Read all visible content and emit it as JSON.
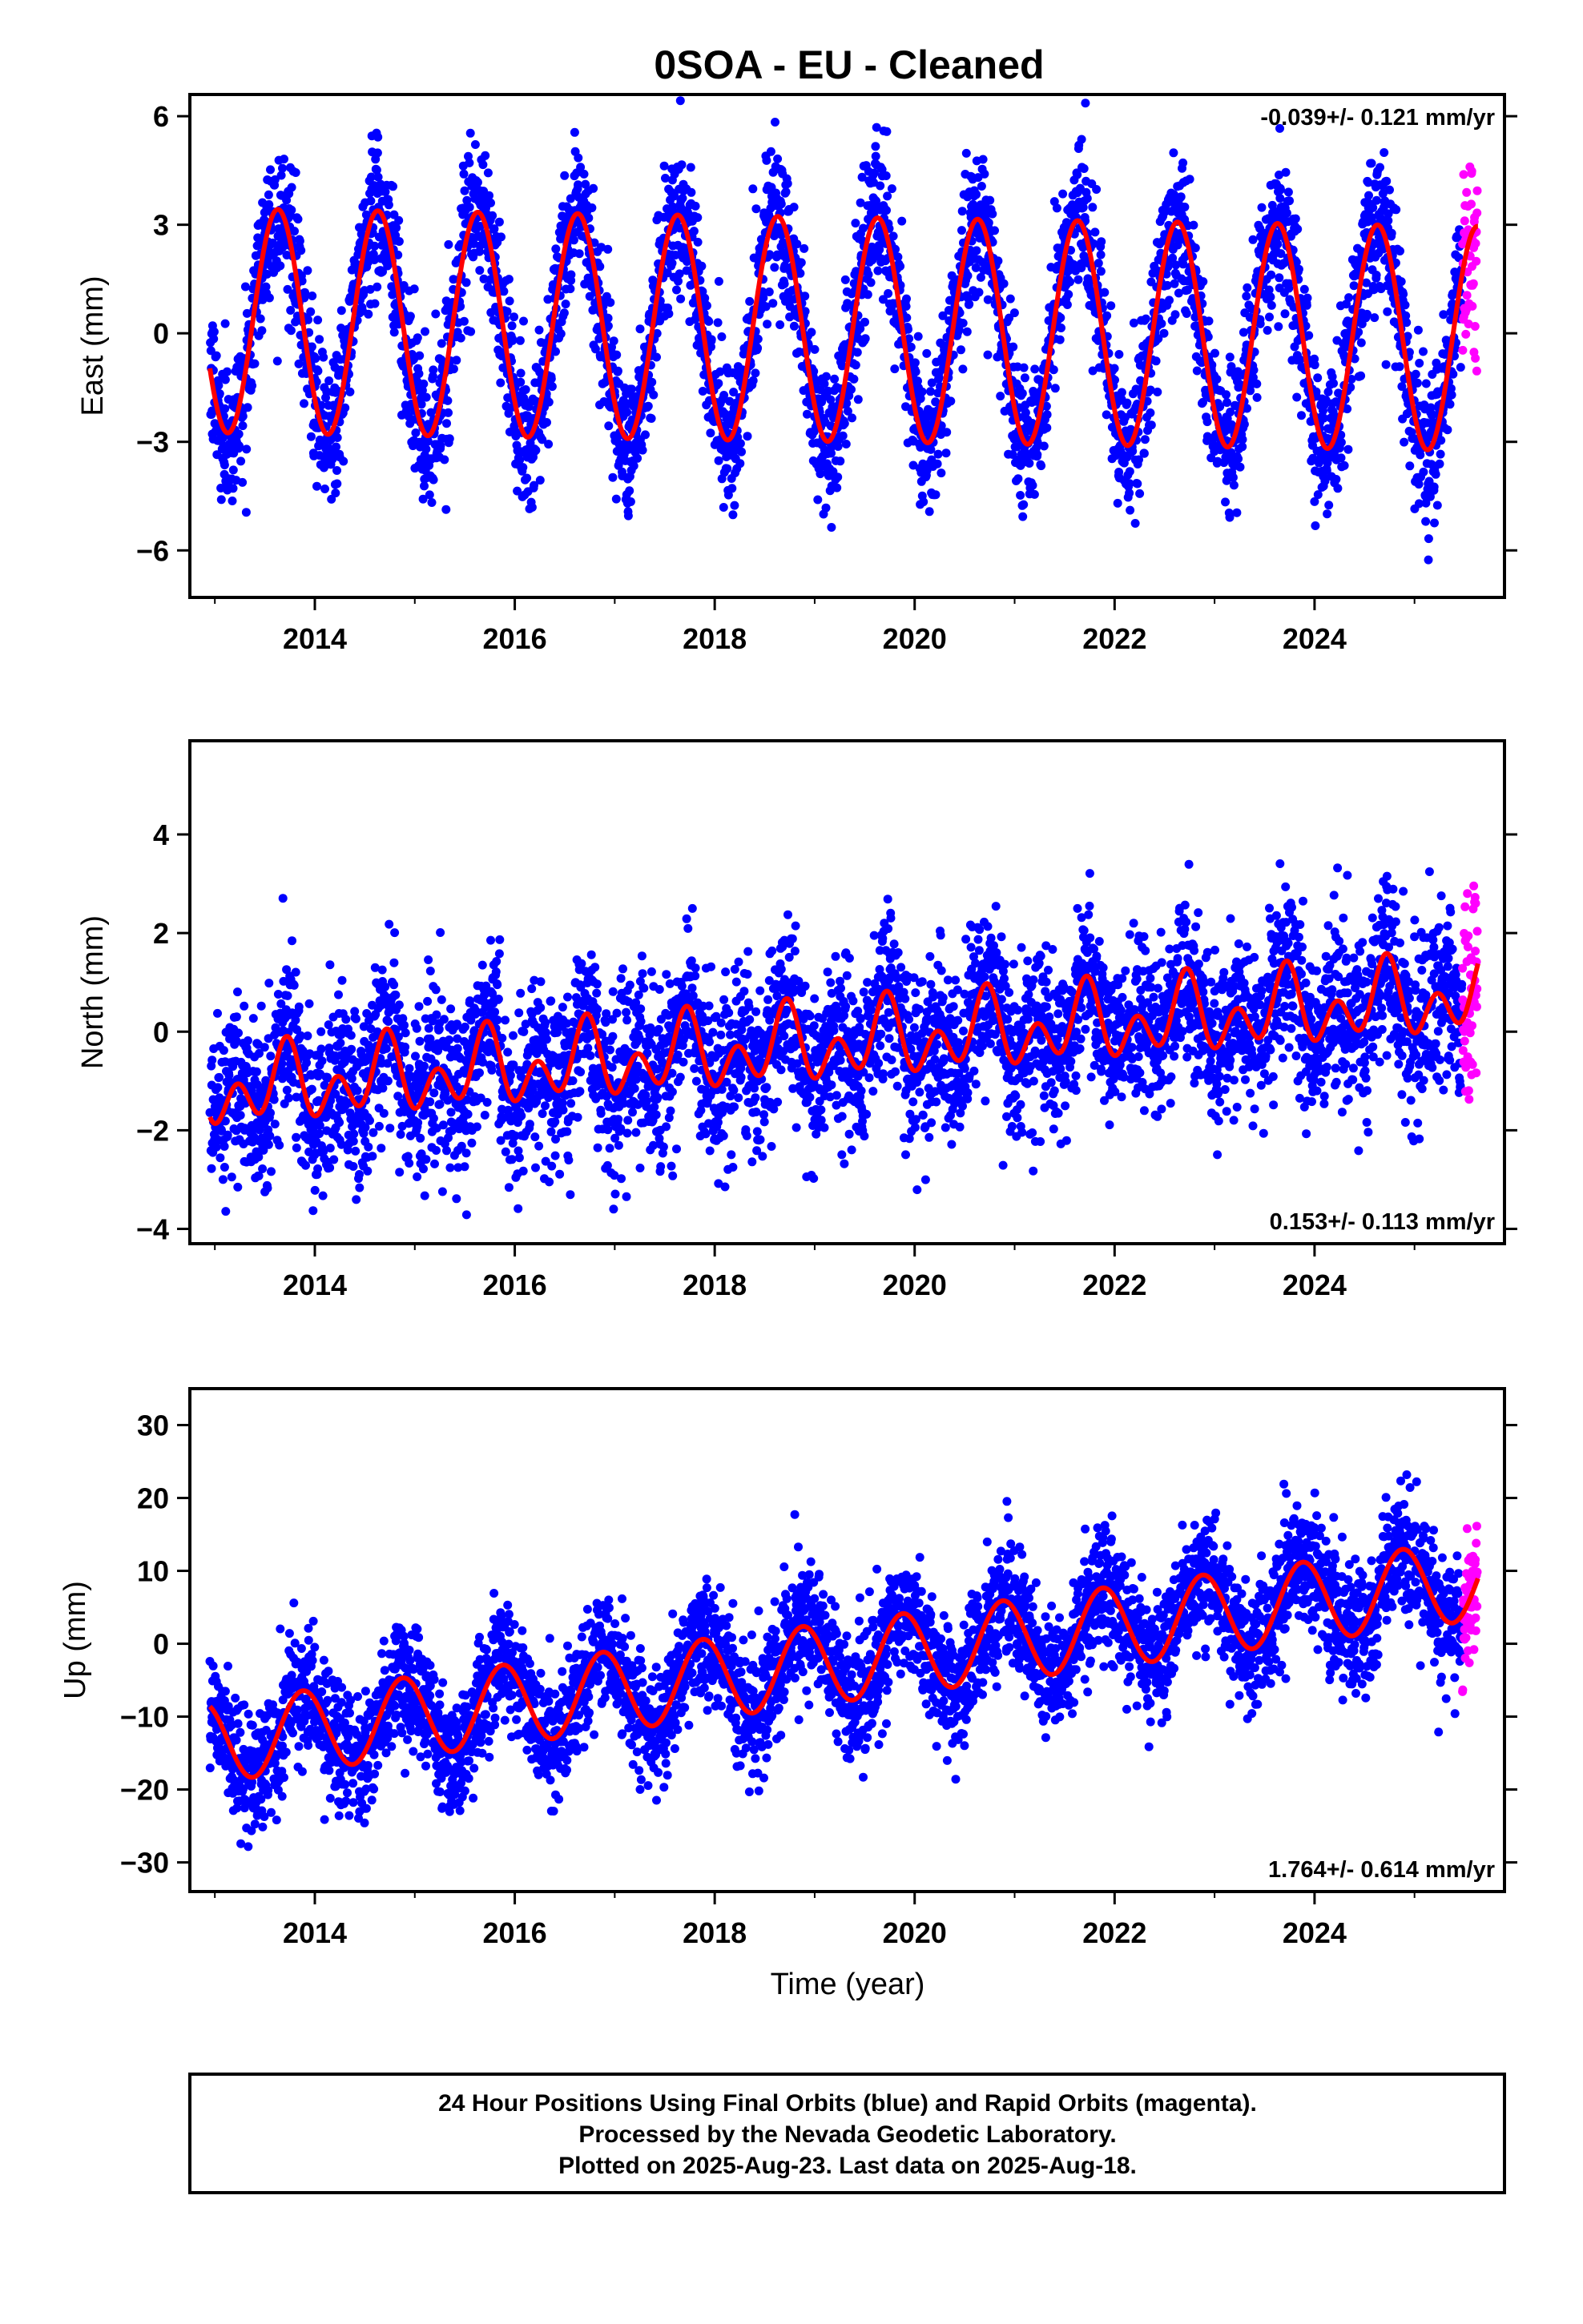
{
  "title": "0SOA  - EU - Cleaned",
  "xlabel": "Time (year)",
  "footer": {
    "lines": [
      "24 Hour Positions Using Final Orbits (blue) and Rapid Orbits (magenta).",
      "Processed by the Nevada Geodetic Laboratory.",
      "Plotted on 2025-Aug-23. Last data on 2025-Aug-18."
    ]
  },
  "colors": {
    "final_orbits": "#0000ff",
    "rapid_orbits": "#ff00ff",
    "model_fit": "#ff0000"
  },
  "chart_data": [
    {
      "type": "scatter",
      "component": "east",
      "ylabel": "East (mm)",
      "rate_label": "-0.039+/- 0.121 mm/yr",
      "rate_position": "top-right",
      "xlim": [
        2012.75,
        2025.9
      ],
      "ylim": [
        -7.3,
        6.6
      ],
      "xticks": [
        2014,
        2016,
        2018,
        2020,
        2022,
        2024
      ],
      "yticks": [
        -6,
        -3,
        0,
        3,
        6
      ],
      "series": [
        {
          "name": "Final Orbits",
          "role": "final",
          "x_range": [
            2012.95,
            2025.48
          ],
          "noise_sigma": 1.0
        },
        {
          "name": "Rapid Orbits",
          "role": "rapid",
          "x_range": [
            2025.48,
            2025.63
          ],
          "noise_sigma": 1.6
        },
        {
          "name": "Model",
          "role": "model",
          "offset": 0.35,
          "trend": -0.039,
          "amp": 3.1,
          "phase_year": 0.38,
          "semi_amp": 0.0,
          "semi_phase": 0.0
        }
      ]
    },
    {
      "type": "scatter",
      "component": "north",
      "ylabel": "North (mm)",
      "rate_label": "0.153+/- 0.113 mm/yr",
      "rate_position": "bottom-right",
      "xlim": [
        2012.75,
        2025.9
      ],
      "ylim": [
        -4.3,
        5.9
      ],
      "xticks": [
        2014,
        2016,
        2018,
        2020,
        2022,
        2024
      ],
      "yticks": [
        -4,
        -2,
        0,
        2,
        4
      ],
      "series": [
        {
          "name": "Final Orbits",
          "role": "final",
          "x_range": [
            2012.95,
            2025.48
          ],
          "noise_sigma": 0.85
        },
        {
          "name": "Rapid Orbits",
          "role": "rapid",
          "x_range": [
            2025.48,
            2025.63
          ],
          "noise_sigma": 1.1
        },
        {
          "name": "Model",
          "role": "model",
          "offset": -1.2,
          "trend": 0.153,
          "amp": 0.45,
          "phase_year": 0.45,
          "semi_amp": 0.55,
          "semi_phase": 0.1
        }
      ]
    },
    {
      "type": "scatter",
      "component": "up",
      "ylabel": "Up (mm)",
      "rate_label": "1.764+/- 0.614 mm/yr",
      "rate_position": "bottom-right",
      "xlim": [
        2012.75,
        2025.9
      ],
      "ylim": [
        -34,
        35
      ],
      "xticks": [
        2014,
        2016,
        2018,
        2020,
        2022,
        2024
      ],
      "yticks": [
        -30,
        -20,
        -10,
        0,
        10,
        20,
        30
      ],
      "series": [
        {
          "name": "Final Orbits",
          "role": "final",
          "x_range": [
            2012.95,
            2025.48
          ],
          "noise_sigma": 4.2
        },
        {
          "name": "Rapid Orbits",
          "role": "rapid",
          "x_range": [
            2025.48,
            2025.63
          ],
          "noise_sigma": 4.5
        },
        {
          "name": "Model",
          "role": "model",
          "offset": -13.5,
          "trend": 1.764,
          "amp": 5.5,
          "phase_year": 0.63,
          "semi_amp": 0.0,
          "semi_phase": 0.0
        }
      ]
    }
  ]
}
